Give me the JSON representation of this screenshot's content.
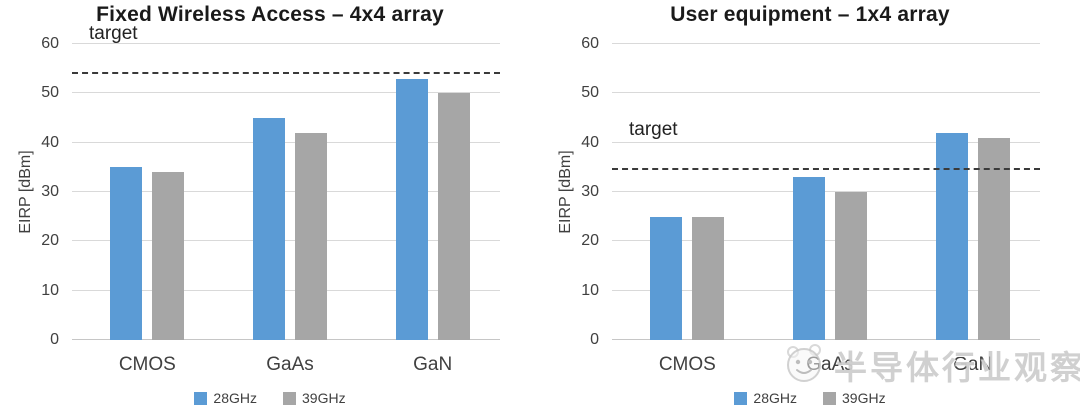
{
  "colors": {
    "bar_28ghz": "#5B9BD5",
    "bar_39ghz": "#A6A6A6",
    "gridline": "#D9D9D9",
    "axis_text": "#404040",
    "target_line": "#3A3A3A",
    "title_text": "#1A1A1A",
    "watermark": "#969696"
  },
  "watermark": {
    "text": "半导体行业观察",
    "logo": "wechat-account-face-logo"
  },
  "chart_data": [
    {
      "type": "bar",
      "title": "Fixed Wireless Access – 4x4 array",
      "xlabel": "",
      "ylabel": "EIRP [dBm]",
      "categories": [
        "CMOS",
        "GaAs",
        "GaN"
      ],
      "series": [
        {
          "name": "28GHz",
          "color": "#5B9BD5",
          "values": [
            35,
            45,
            53
          ]
        },
        {
          "name": "39GHz",
          "color": "#A6A6A6",
          "values": [
            34,
            42,
            50
          ]
        }
      ],
      "target": {
        "label": "target",
        "value": 54
      },
      "ylim": [
        0,
        60
      ],
      "ytick_step": 10,
      "grid": true,
      "legend_position": "bottom"
    },
    {
      "type": "bar",
      "title": "User equipment – 1x4 array",
      "xlabel": "",
      "ylabel": "EIRP [dBm]",
      "categories": [
        "CMOS",
        "GaAs",
        "GaN"
      ],
      "series": [
        {
          "name": "28GHz",
          "color": "#5B9BD5",
          "values": [
            25,
            33,
            42
          ]
        },
        {
          "name": "39GHz",
          "color": "#A6A6A6",
          "values": [
            25,
            30,
            41
          ]
        }
      ],
      "target": {
        "label": "target",
        "value": 34.5
      },
      "ylim": [
        0,
        60
      ],
      "ytick_step": 10,
      "grid": true,
      "legend_position": "bottom"
    }
  ]
}
